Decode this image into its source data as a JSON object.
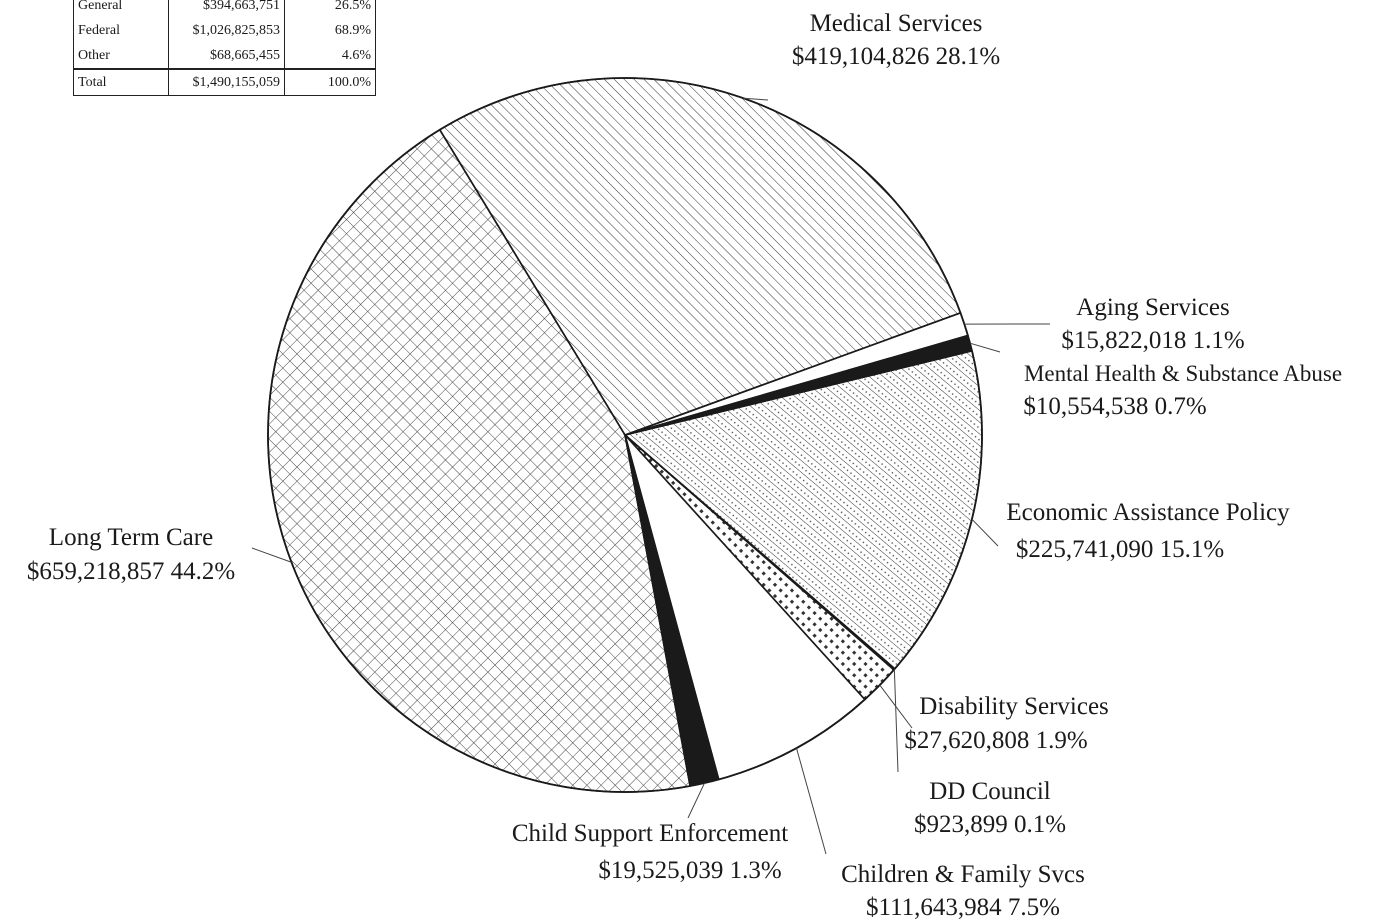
{
  "funding_table": {
    "rows": [
      {
        "source": "General",
        "amount": "$394,663,751",
        "percent": "26.5%"
      },
      {
        "source": "Federal",
        "amount": "$1,026,825,853",
        "percent": "68.9%"
      },
      {
        "source": "Other",
        "amount": "$68,665,455",
        "percent": "4.6%"
      }
    ],
    "total": {
      "source": "Total",
      "amount": "$1,490,155,059",
      "percent": "100.0%"
    }
  },
  "chart_data": {
    "type": "pie",
    "title": "",
    "start_angle_deg": -20,
    "direction": "clockwise",
    "slices": [
      {
        "name": "Aging Services",
        "value": 15822018,
        "amount": "$15,822,018",
        "percent": "1.1%",
        "fill": "white"
      },
      {
        "name": "Mental Health & Substance Abuse",
        "value": 10554538,
        "amount": "$10,554,538",
        "percent": "0.7%",
        "fill": "solid-black"
      },
      {
        "name": "Economic Assistance Policy",
        "value": 225741090,
        "amount": "$225,741,090",
        "percent": "15.1%",
        "fill": "diagonal-dotted"
      },
      {
        "name": "DD Council",
        "value": 923899,
        "amount": "$923,899",
        "percent": "0.1%",
        "fill": "white"
      },
      {
        "name": "Disability Services",
        "value": 27620808,
        "amount": "$27,620,808",
        "percent": "1.9%",
        "fill": "checker"
      },
      {
        "name": "Children & Family Svcs",
        "value": 111643984,
        "amount": "$111,643,984",
        "percent": "7.5%",
        "fill": "white"
      },
      {
        "name": "Child Support Enforcement",
        "value": 19525039,
        "amount": "$19,525,039",
        "percent": "1.3%",
        "fill": "solid-black"
      },
      {
        "name": "Long Term Care",
        "value": 659218857,
        "amount": "$659,218,857",
        "percent": "44.2%",
        "fill": "crosshatch"
      },
      {
        "name": "Medical Services",
        "value": 419104826,
        "amount": "$419,104,826",
        "percent": "28.1%",
        "fill": "diagonal-hatch"
      }
    ],
    "legend": "none",
    "colors": {
      "stroke": "#1a1a1a",
      "background": "#ffffff"
    }
  }
}
